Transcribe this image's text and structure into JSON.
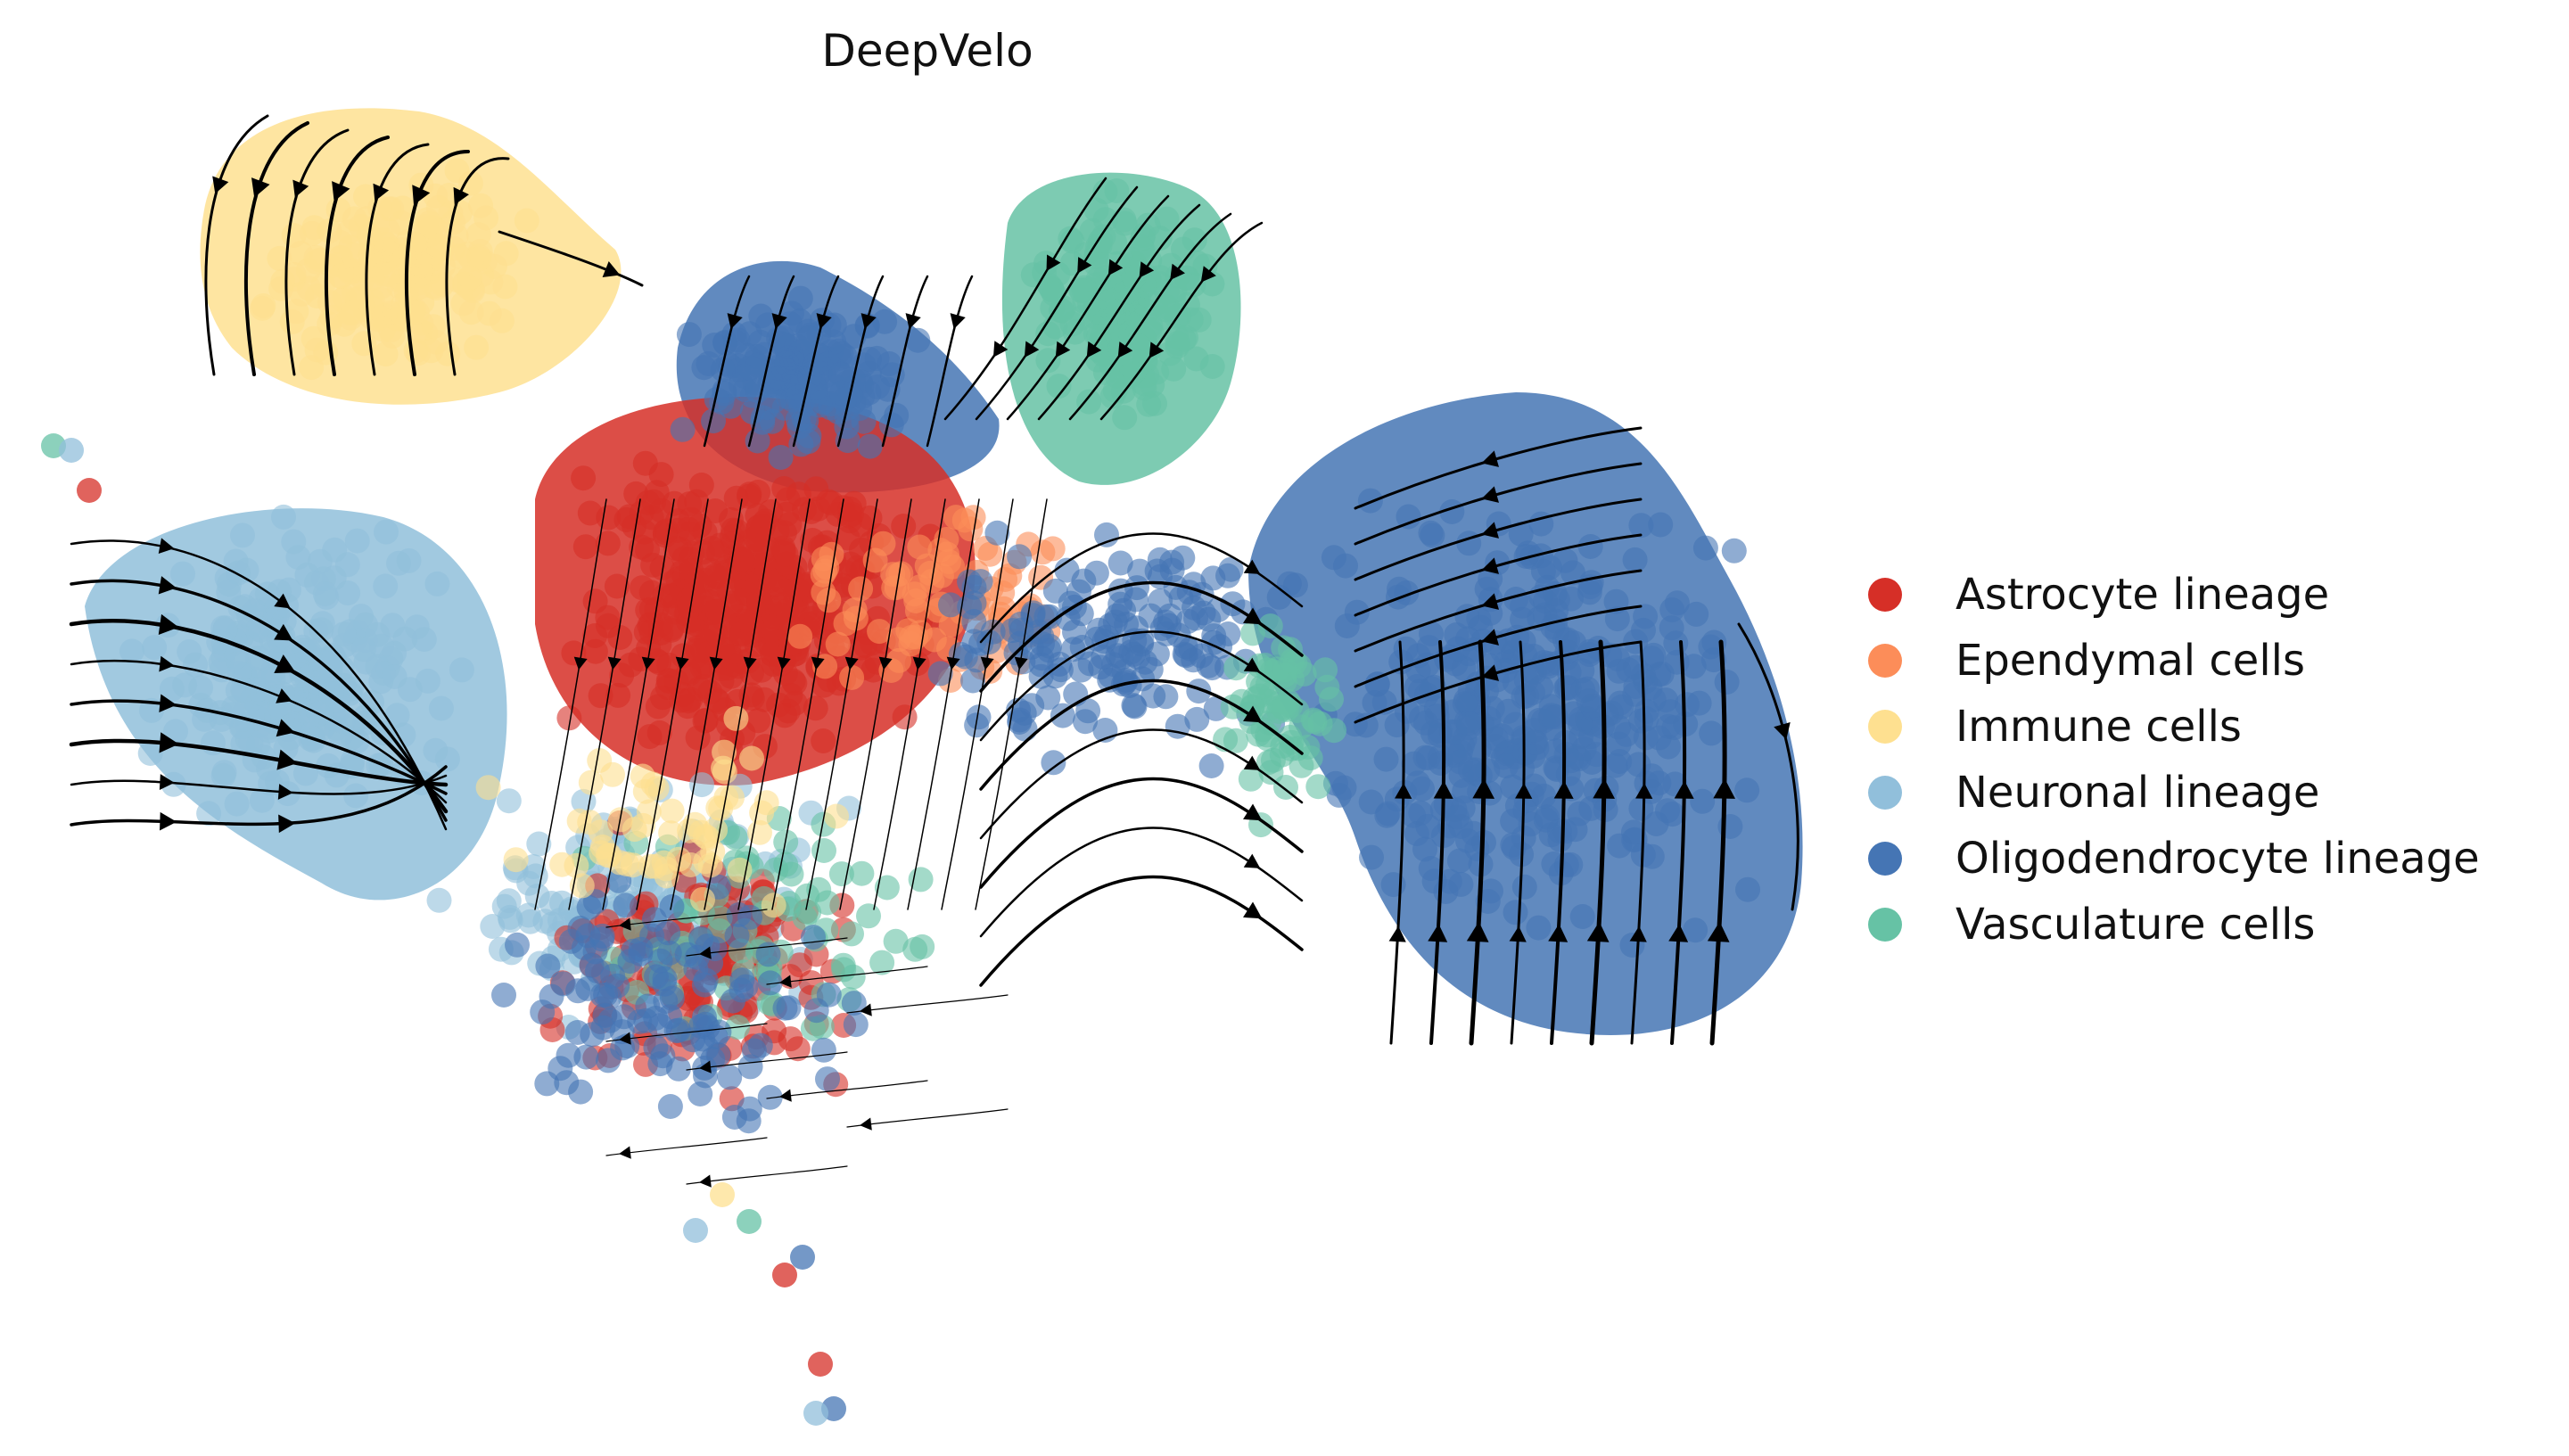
{
  "chart_data": {
    "type": "scatter",
    "title": "DeepVelo",
    "xlabel": "",
    "ylabel": "",
    "axes": "off",
    "grid": false,
    "legend_position": "right",
    "overlay": "velocity streamlines with arrowheads",
    "series": [
      {
        "name": "Astrocyte lineage",
        "color": "#d62f27"
      },
      {
        "name": "Ependymal cells",
        "color": "#fc8d59"
      },
      {
        "name": "Immune cells",
        "color": "#fee090"
      },
      {
        "name": "Neuronal lineage",
        "color": "#91bfdb"
      },
      {
        "name": "Oligodendrocyte lineage",
        "color": "#4575b4"
      },
      {
        "name": "Vasculature cells",
        "color": "#66c2a5"
      }
    ]
  }
}
